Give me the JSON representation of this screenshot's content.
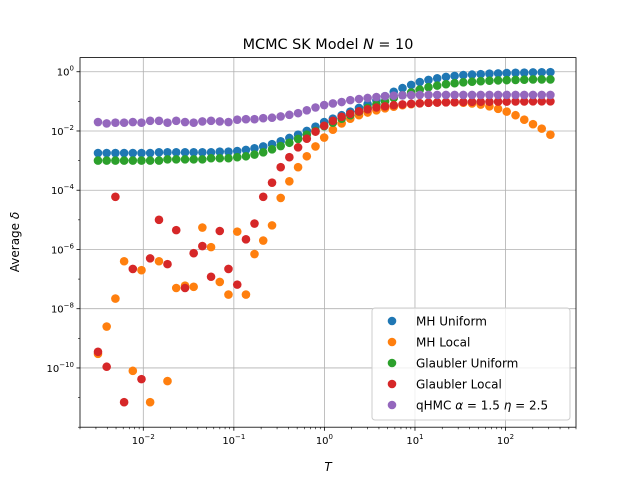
{
  "chart_data": {
    "type": "scatter",
    "title": "MCMC SK Model N =  10",
    "title_parts": [
      "MCMC SK Model ",
      "N",
      " =  10"
    ],
    "xlabel": "T",
    "ylabel_parts": [
      "Average ",
      "δ"
    ],
    "xscale": "log",
    "yscale": "log",
    "xlim": [
      0.002,
      600
    ],
    "ylim": [
      1e-12,
      3
    ],
    "grid": true,
    "legend_position": "lower-right",
    "x_ticks": [
      {
        "value": 0.01,
        "base": "10",
        "exp": "−2"
      },
      {
        "value": 0.1,
        "base": "10",
        "exp": "−1"
      },
      {
        "value": 1,
        "base": "10",
        "exp": "0"
      },
      {
        "value": 10,
        "base": "10",
        "exp": "1"
      },
      {
        "value": 100,
        "base": "10",
        "exp": "2"
      }
    ],
    "y_ticks": [
      {
        "value": 1e-10,
        "base": "10",
        "exp": "−10"
      },
      {
        "value": 1e-08,
        "base": "10",
        "exp": "−8"
      },
      {
        "value": 1e-06,
        "base": "10",
        "exp": "−6"
      },
      {
        "value": 0.0001,
        "base": "10",
        "exp": "−4"
      },
      {
        "value": 0.01,
        "base": "10",
        "exp": "−2"
      },
      {
        "value": 1,
        "base": "10",
        "exp": "0"
      }
    ],
    "series": [
      {
        "name": "MH Uniform",
        "legend_parts": [
          "MH Uniform"
        ],
        "color": "#1f77b4",
        "x": [
          0.00316,
          0.00394,
          0.00492,
          0.00614,
          0.00766,
          0.00955,
          0.0119,
          0.0149,
          0.0185,
          0.0231,
          0.0289,
          0.036,
          0.0449,
          0.056,
          0.0699,
          0.0872,
          0.109,
          0.136,
          0.169,
          0.211,
          0.264,
          0.329,
          0.41,
          0.512,
          0.639,
          0.797,
          0.994,
          1.24,
          1.55,
          1.93,
          2.41,
          3.0,
          3.75,
          4.67,
          5.83,
          7.28,
          9.08,
          11.3,
          14.1,
          17.6,
          22.0,
          27.4,
          34.2,
          42.7,
          53.2,
          66.4,
          82.8,
          103,
          129,
          161,
          201,
          251,
          313
        ],
        "y": [
          0.0018,
          0.0018,
          0.0018,
          0.0018,
          0.0018,
          0.0018,
          0.0018,
          0.0019,
          0.0019,
          0.0019,
          0.0019,
          0.0019,
          0.0019,
          0.0019,
          0.002,
          0.002,
          0.0021,
          0.0023,
          0.0026,
          0.003,
          0.0036,
          0.0045,
          0.0058,
          0.0075,
          0.01,
          0.014,
          0.02,
          0.026,
          0.034,
          0.045,
          0.06,
          0.08,
          0.11,
          0.15,
          0.21,
          0.28,
          0.36,
          0.45,
          0.53,
          0.6,
          0.67,
          0.72,
          0.77,
          0.8,
          0.83,
          0.86,
          0.88,
          0.9,
          0.92,
          0.93,
          0.95,
          0.96,
          0.97
        ]
      },
      {
        "name": "MH Local",
        "legend_parts": [
          "MH Local"
        ],
        "color": "#ff7f0e",
        "x": [
          0.00316,
          0.00394,
          0.00492,
          0.00614,
          0.00766,
          0.00955,
          0.0119,
          0.0149,
          0.0185,
          0.0231,
          0.0289,
          0.036,
          0.0449,
          0.056,
          0.0699,
          0.0872,
          0.109,
          0.136,
          0.169,
          0.211,
          0.264,
          0.329,
          0.41,
          0.512,
          0.639,
          0.797,
          0.994,
          1.24,
          1.55,
          1.93,
          2.41,
          3.0,
          3.75,
          4.67,
          5.83,
          7.28,
          9.08,
          11.3,
          14.1,
          17.6,
          22.0,
          27.4,
          34.2,
          42.7,
          53.2,
          66.4,
          82.8,
          103,
          129,
          161,
          201,
          251,
          313
        ],
        "y": [
          3e-10,
          2.5e-09,
          2.2e-08,
          4e-07,
          8e-11,
          2e-07,
          7e-12,
          4e-07,
          3.6e-11,
          5e-08,
          6e-08,
          5.5e-08,
          5.5e-06,
          1.2e-06,
          8e-08,
          3e-08,
          4e-06,
          3e-08,
          7e-07,
          2e-06,
          6.5e-06,
          5.5e-05,
          0.0002,
          0.0006,
          0.0014,
          0.003,
          0.006,
          0.011,
          0.018,
          0.026,
          0.034,
          0.042,
          0.05,
          0.058,
          0.066,
          0.074,
          0.08,
          0.086,
          0.09,
          0.092,
          0.094,
          0.093,
          0.09,
          0.085,
          0.078,
          0.068,
          0.056,
          0.045,
          0.034,
          0.024,
          0.017,
          0.012,
          0.0075
        ]
      },
      {
        "name": "Glaubler Uniform",
        "legend_parts": [
          "Glaubler Uniform"
        ],
        "color": "#2ca02c",
        "x": [
          0.00316,
          0.00394,
          0.00492,
          0.00614,
          0.00766,
          0.00955,
          0.0119,
          0.0149,
          0.0185,
          0.0231,
          0.0289,
          0.036,
          0.0449,
          0.056,
          0.0699,
          0.0872,
          0.109,
          0.136,
          0.169,
          0.211,
          0.264,
          0.329,
          0.41,
          0.512,
          0.639,
          0.797,
          0.994,
          1.24,
          1.55,
          1.93,
          2.41,
          3.0,
          3.75,
          4.67,
          5.83,
          7.28,
          9.08,
          11.3,
          14.1,
          17.6,
          22.0,
          27.4,
          34.2,
          42.7,
          53.2,
          66.4,
          82.8,
          103,
          129,
          161,
          201,
          251,
          313
        ],
        "y": [
          0.001,
          0.001,
          0.001,
          0.001,
          0.001,
          0.001,
          0.001,
          0.001,
          0.0011,
          0.0011,
          0.0011,
          0.0011,
          0.0011,
          0.0012,
          0.0012,
          0.0012,
          0.0013,
          0.0014,
          0.0016,
          0.0019,
          0.0024,
          0.0031,
          0.004,
          0.0054,
          0.0075,
          0.01,
          0.0145,
          0.019,
          0.026,
          0.034,
          0.045,
          0.06,
          0.078,
          0.1,
          0.13,
          0.16,
          0.2,
          0.25,
          0.3,
          0.34,
          0.38,
          0.41,
          0.44,
          0.46,
          0.48,
          0.5,
          0.51,
          0.52,
          0.53,
          0.54,
          0.55,
          0.55,
          0.55
        ]
      },
      {
        "name": "Glaubler Local",
        "legend_parts": [
          "Glaubler Local"
        ],
        "color": "#d62728",
        "x": [
          0.00316,
          0.00394,
          0.00492,
          0.00614,
          0.00766,
          0.00955,
          0.0119,
          0.0149,
          0.0185,
          0.0231,
          0.0289,
          0.036,
          0.0449,
          0.056,
          0.0699,
          0.0872,
          0.109,
          0.136,
          0.169,
          0.211,
          0.264,
          0.329,
          0.41,
          0.512,
          0.639,
          0.797,
          0.994,
          1.24,
          1.55,
          1.93,
          2.41,
          3.0,
          3.75,
          4.67,
          5.83,
          7.28,
          9.08,
          11.3,
          14.1,
          17.6,
          22.0,
          27.4,
          34.2,
          42.7,
          53.2,
          66.4,
          82.8,
          103,
          129,
          161,
          201,
          251,
          313
        ],
        "y": [
          3.5e-10,
          1.1e-10,
          6e-05,
          7e-12,
          2.2e-07,
          4.2e-11,
          5e-07,
          1e-05,
          3.2e-07,
          4.5e-06,
          5e-08,
          7.5e-07,
          1.3e-06,
          1.2e-07,
          4.2e-06,
          2.2e-07,
          6.5e-08,
          2.2e-06,
          7.5e-06,
          6e-05,
          0.00018,
          0.0006,
          0.0013,
          0.0028,
          0.0055,
          0.0095,
          0.015,
          0.022,
          0.03,
          0.038,
          0.046,
          0.054,
          0.062,
          0.068,
          0.074,
          0.079,
          0.083,
          0.086,
          0.089,
          0.091,
          0.093,
          0.094,
          0.095,
          0.096,
          0.097,
          0.097,
          0.098,
          0.098,
          0.099,
          0.099,
          0.1,
          0.1,
          0.1
        ]
      },
      {
        "name": "qHMC α = 1.5 η = 2.5",
        "legend_parts": [
          "qHMC ",
          "α",
          " = 1.5 ",
          "η",
          " = 2.5"
        ],
        "color": "#9467bd",
        "x": [
          0.00316,
          0.00394,
          0.00492,
          0.00614,
          0.00766,
          0.00955,
          0.0119,
          0.0149,
          0.0185,
          0.0231,
          0.0289,
          0.036,
          0.0449,
          0.056,
          0.0699,
          0.0872,
          0.109,
          0.136,
          0.169,
          0.211,
          0.264,
          0.329,
          0.41,
          0.512,
          0.639,
          0.797,
          0.994,
          1.24,
          1.55,
          1.93,
          2.41,
          3.0,
          3.75,
          4.67,
          5.83,
          7.28,
          9.08,
          11.3,
          14.1,
          17.6,
          22.0,
          27.4,
          34.2,
          42.7,
          53.2,
          66.4,
          82.8,
          103,
          129,
          161,
          201,
          251,
          313
        ],
        "y": [
          0.02,
          0.018,
          0.019,
          0.019,
          0.02,
          0.019,
          0.022,
          0.022,
          0.019,
          0.022,
          0.02,
          0.019,
          0.021,
          0.022,
          0.021,
          0.02,
          0.024,
          0.025,
          0.025,
          0.027,
          0.028,
          0.031,
          0.035,
          0.04,
          0.05,
          0.062,
          0.075,
          0.085,
          0.095,
          0.11,
          0.12,
          0.13,
          0.14,
          0.15,
          0.155,
          0.16,
          0.162,
          0.165,
          0.165,
          0.165,
          0.165,
          0.165,
          0.165,
          0.165,
          0.165,
          0.165,
          0.165,
          0.165,
          0.165,
          0.165,
          0.165,
          0.165,
          0.165
        ]
      }
    ]
  }
}
